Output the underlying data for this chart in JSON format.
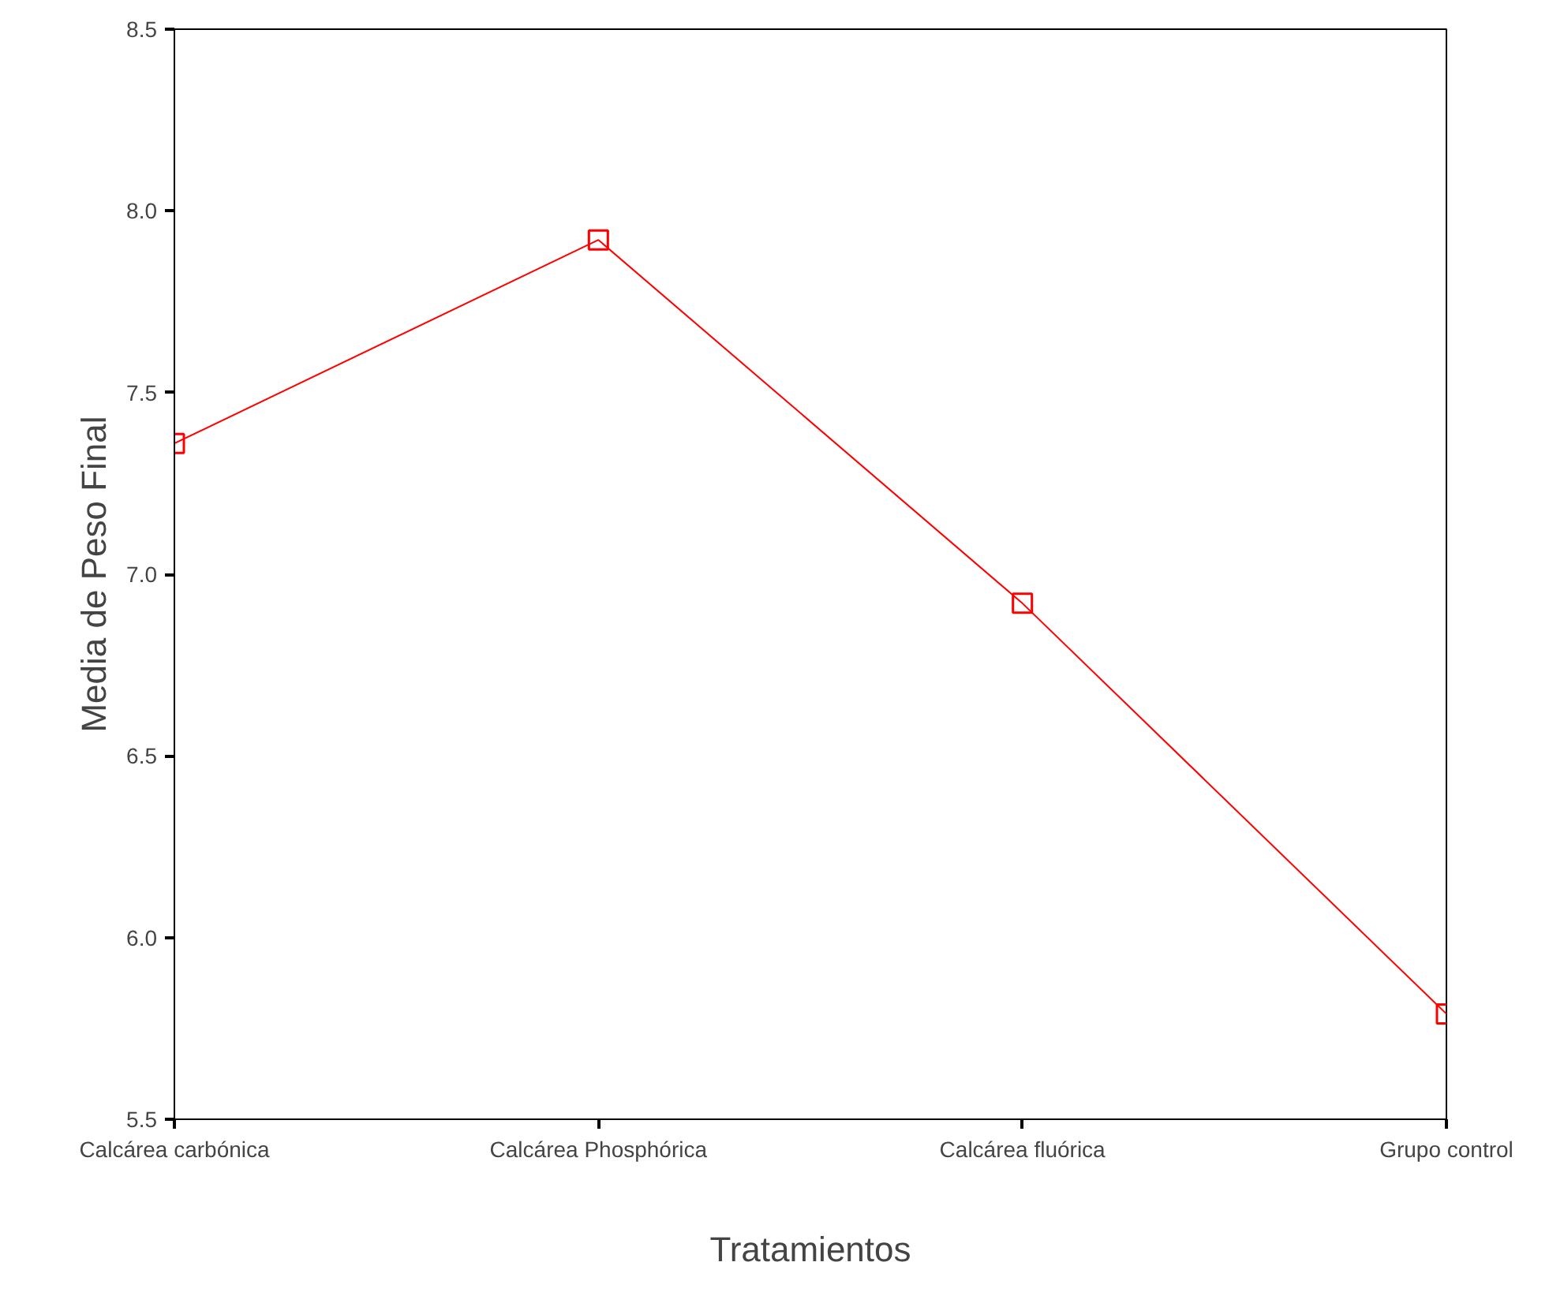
{
  "chart_data": {
    "type": "line",
    "xlabel": "Tratamientos",
    "ylabel": "Media de Peso Final",
    "categories": [
      "Calcárea carbónica",
      "Calcárea Phosphórica",
      "Calcárea fluórica",
      "Grupo control"
    ],
    "series": [
      {
        "color": "#ff0000",
        "values": [
          7.36,
          7.92,
          6.92,
          5.79
        ]
      }
    ],
    "ylim": [
      5.5,
      8.5
    ],
    "yticks": [
      {
        "value": 5.5,
        "label": "5.5"
      },
      {
        "value": 6.0,
        "label": "6.0"
      },
      {
        "value": 6.5,
        "label": "6.5"
      },
      {
        "value": 7.0,
        "label": "7.0"
      },
      {
        "value": 7.5,
        "label": "7.5"
      },
      {
        "value": 8.0,
        "label": "8.0"
      },
      {
        "value": 8.5,
        "label": "8.5"
      }
    ],
    "grid": false,
    "marker": "square",
    "line_style": "solid"
  }
}
